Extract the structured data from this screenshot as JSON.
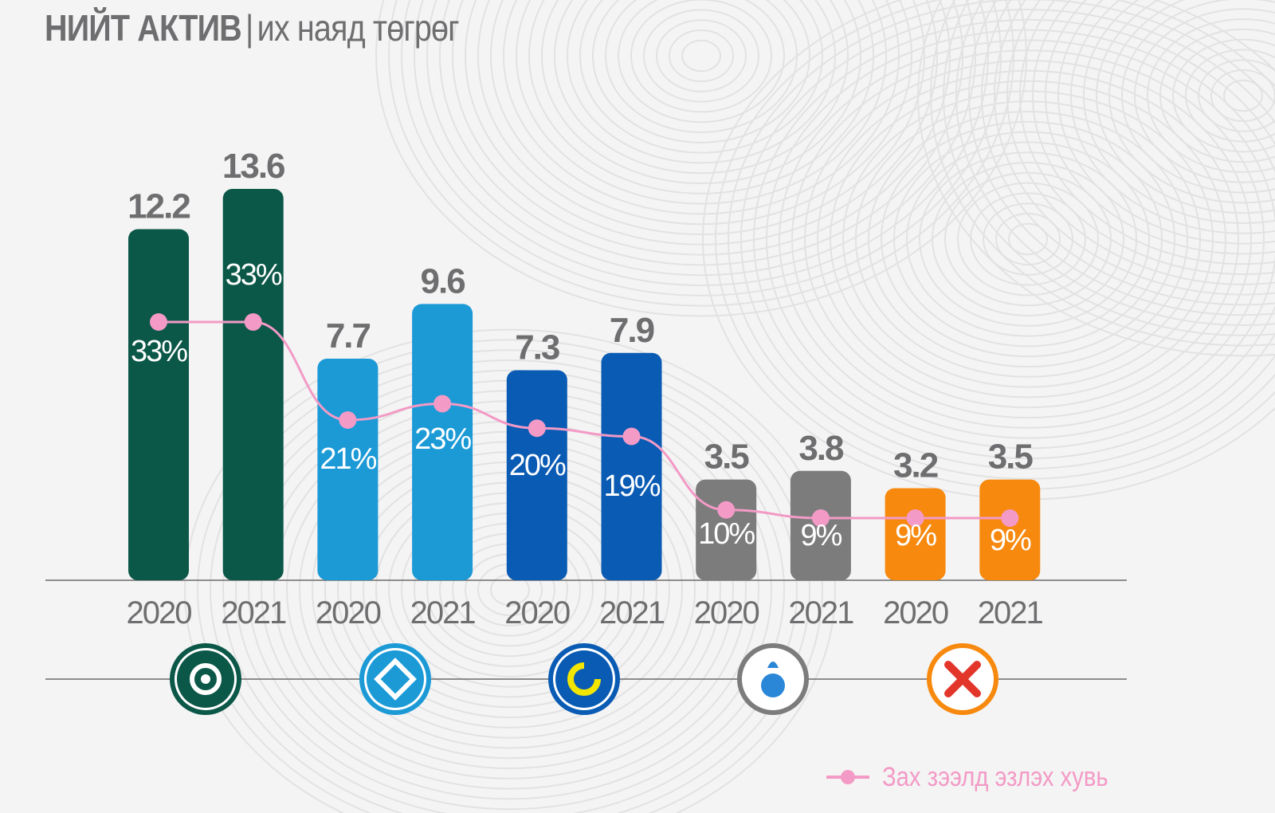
{
  "title": {
    "main": "НИЙТ АКТИВ",
    "separator": "|",
    "sub": "их наяд төгрөг"
  },
  "legend": {
    "label": "Зах зээлд эзлэх хувь",
    "color": "#f39ac6"
  },
  "chart_data": {
    "type": "bar",
    "title": "НИЙТ АКТИВ | их наяд төгрөг",
    "categories": [
      "2020",
      "2021",
      "2020",
      "2021",
      "2020",
      "2021",
      "2020",
      "2021",
      "2020",
      "2021"
    ],
    "values": [
      12.2,
      13.6,
      7.7,
      9.6,
      7.3,
      7.9,
      3.5,
      3.8,
      3.2,
      3.5
    ],
    "value_labels": [
      "12.2",
      "13.6",
      "7.7",
      "9.6",
      "7.3",
      "7.9",
      "3.5",
      "3.8",
      "3.2",
      "3.5"
    ],
    "bar_colors": [
      "#0b5748",
      "#0b5748",
      "#1b9ad6",
      "#1b9ad6",
      "#0a5bb4",
      "#0a5bb4",
      "#7c7c7c",
      "#7c7c7c",
      "#f7890f",
      "#f7890f"
    ],
    "ylim": [
      0,
      15
    ],
    "line_series": {
      "name": "Зах зээлд эзлэх хувь",
      "values": [
        33,
        33,
        21,
        23,
        20,
        19,
        10,
        9,
        9,
        9
      ],
      "labels": [
        "33%",
        "33%",
        "21%",
        "23%",
        "20%",
        "19%",
        "10%",
        "9%",
        "9%",
        "9%"
      ],
      "color": "#f39ac6"
    },
    "groups": [
      {
        "icon": "green-bank-logo-icon",
        "color": "#0b5748"
      },
      {
        "icon": "lightblue-bank-logo-icon",
        "color": "#1b9ad6"
      },
      {
        "icon": "blue-bank-logo-icon",
        "color": "#0a5bb4"
      },
      {
        "icon": "grey-bank-logo-icon",
        "color": "#7c7c7c"
      },
      {
        "icon": "orange-bank-logo-icon",
        "color": "#f7890f"
      }
    ],
    "grid": false,
    "legend_position": "bottom-right"
  }
}
